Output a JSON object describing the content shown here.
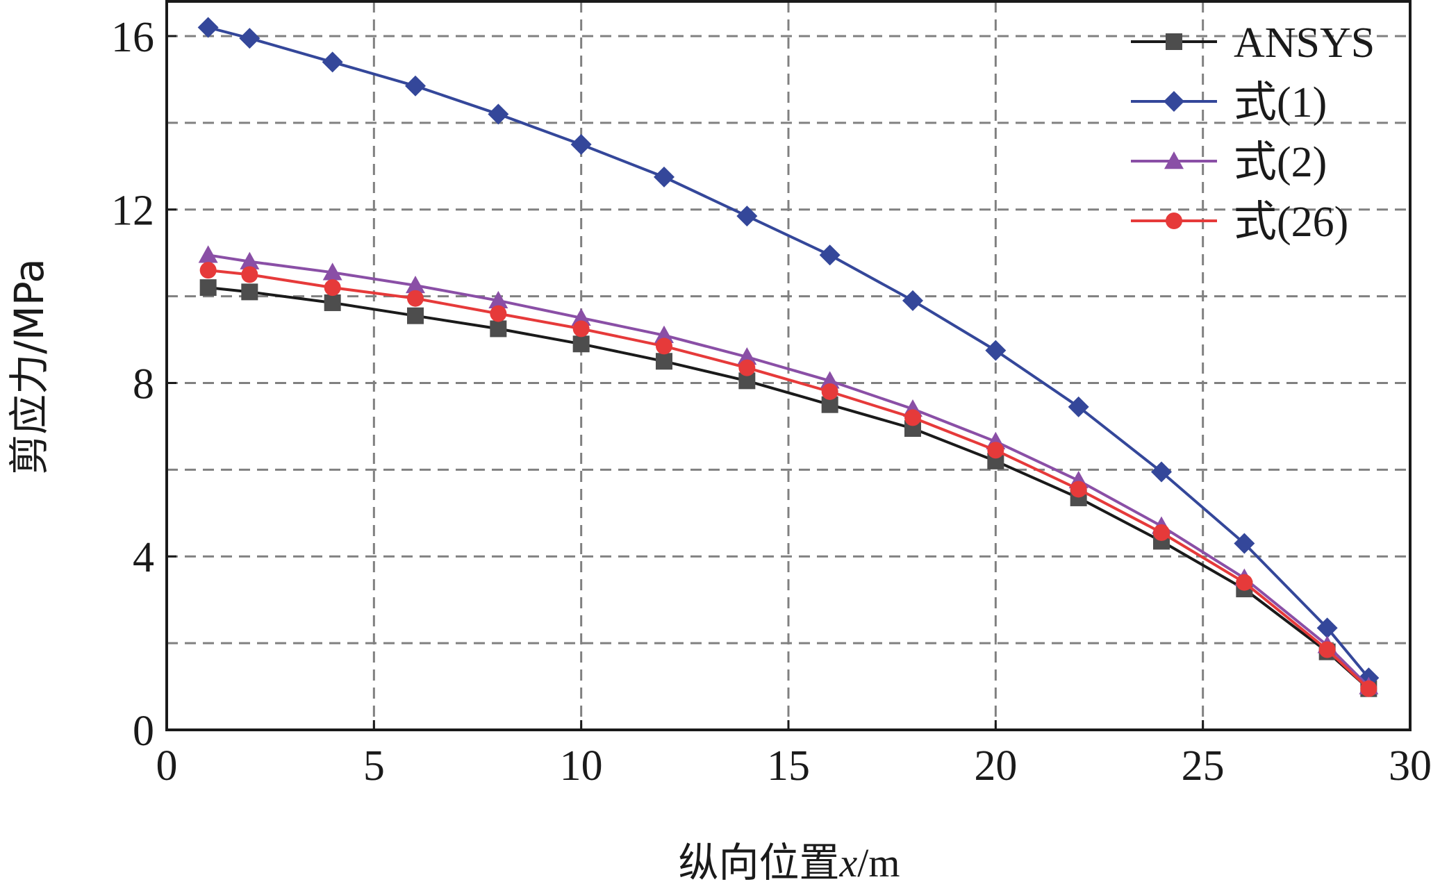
{
  "chart_data": {
    "type": "line",
    "title": "",
    "xlabel": "纵向位置",
    "xlabel_var": "x",
    "xlabel_unit": "/m",
    "ylabel": "剪应力/MPa",
    "xlim": [
      0,
      30
    ],
    "ylim": [
      0,
      16.8
    ],
    "xticks": [
      0,
      5,
      10,
      15,
      20,
      25,
      30
    ],
    "yticks": [
      0,
      4,
      8,
      12,
      16
    ],
    "grid": true,
    "legend_position": "top-right",
    "x": [
      1,
      2,
      4,
      6,
      8,
      10,
      12,
      14,
      16,
      18,
      20,
      22,
      24,
      26,
      28,
      29
    ],
    "series": [
      {
        "name": "ANSYS",
        "color": "#1a1a1a",
        "marker_color": "#4d4d4d",
        "marker": "square",
        "values": [
          10.2,
          10.1,
          9.85,
          9.55,
          9.25,
          8.9,
          8.5,
          8.05,
          7.5,
          6.95,
          6.2,
          5.35,
          4.35,
          3.25,
          1.8,
          0.95
        ]
      },
      {
        "name": "式(1)",
        "color": "#34479a",
        "marker_color": "#34479a",
        "marker": "diamond",
        "values": [
          16.2,
          15.95,
          15.4,
          14.85,
          14.2,
          13.5,
          12.75,
          11.85,
          10.95,
          9.9,
          8.75,
          7.45,
          5.95,
          4.3,
          2.35,
          1.2
        ]
      },
      {
        "name": "式(2)",
        "color": "#8a4fa6",
        "marker_color": "#8a4fa6",
        "marker": "triangle",
        "values": [
          10.95,
          10.8,
          10.55,
          10.25,
          9.9,
          9.5,
          9.1,
          8.6,
          8.05,
          7.4,
          6.65,
          5.75,
          4.7,
          3.5,
          1.95,
          1.0
        ]
      },
      {
        "name": "式(26)",
        "color": "#e63a3a",
        "marker_color": "#e63a3a",
        "marker": "circle",
        "values": [
          10.6,
          10.5,
          10.2,
          9.95,
          9.6,
          9.25,
          8.85,
          8.35,
          7.8,
          7.2,
          6.45,
          5.55,
          4.55,
          3.4,
          1.85,
          0.95
        ]
      }
    ]
  }
}
